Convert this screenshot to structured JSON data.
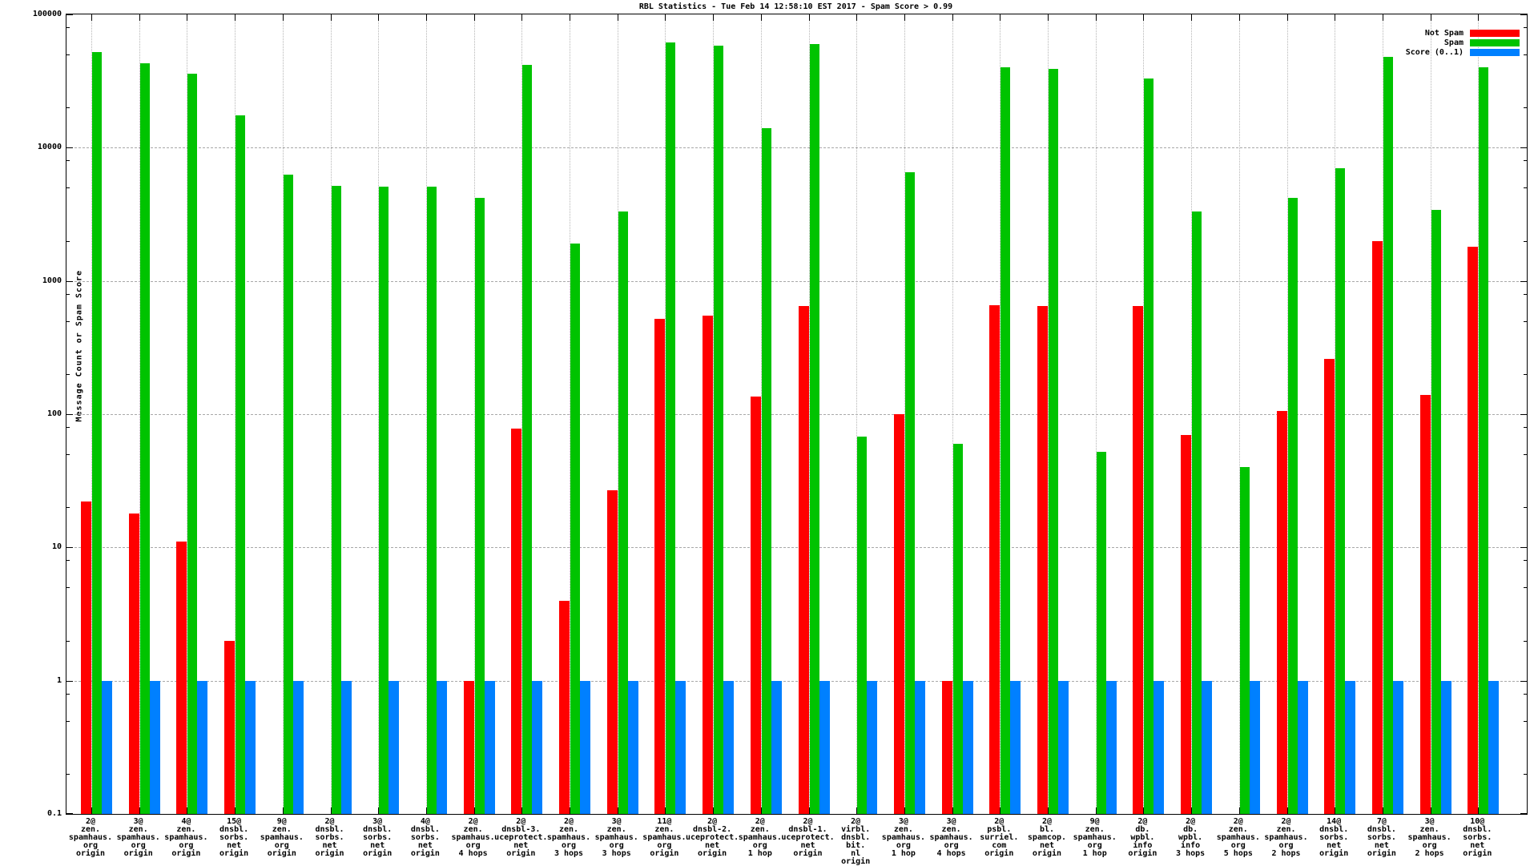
{
  "title": "RBL Statistics - Tue Feb 14 12:58:10 EST 2017 - Spam Score > 0.99",
  "y_axis": {
    "label": "Message Count or Spam Score",
    "scale": "log",
    "ticks": [
      "100000",
      "10000",
      "1000",
      "100",
      "10",
      "1",
      "0.1"
    ],
    "tick_values": [
      100000,
      10000,
      1000,
      100,
      10,
      1,
      0.1
    ]
  },
  "legend": [
    {
      "label": "Not Spam",
      "color": "#ff0000"
    },
    {
      "label": "Spam",
      "color": "#00c300"
    },
    {
      "label": "Score (0..1)",
      "color": "#0080ff"
    }
  ],
  "chart_data": {
    "type": "bar",
    "title": "RBL Statistics - Tue Feb 14 12:58:10 EST 2017 - Spam Score > 0.99",
    "xlabel": "",
    "ylabel": "Message Count or Spam Score",
    "y_scale": "log",
    "ylim": [
      0.1,
      100000
    ],
    "grid": true,
    "legend_position": "top-right",
    "categories": [
      [
        "2@",
        "zen.",
        "spamhaus.",
        "org",
        "origin"
      ],
      [
        "3@",
        "zen.",
        "spamhaus.",
        "org",
        "origin"
      ],
      [
        "4@",
        "zen.",
        "spamhaus.",
        "org",
        "origin"
      ],
      [
        "15@",
        "dnsbl.",
        "sorbs.",
        "net",
        "origin"
      ],
      [
        "9@",
        "zen.",
        "spamhaus.",
        "org",
        "origin"
      ],
      [
        "2@",
        "dnsbl.",
        "sorbs.",
        "net",
        "origin"
      ],
      [
        "3@",
        "dnsbl.",
        "sorbs.",
        "net",
        "origin"
      ],
      [
        "4@",
        "dnsbl.",
        "sorbs.",
        "net",
        "origin"
      ],
      [
        "2@",
        "zen.",
        "spamhaus.",
        "org",
        "4 hops"
      ],
      [
        "2@",
        "dnsbl-3.",
        "uceprotect.",
        "net",
        "origin"
      ],
      [
        "2@",
        "zen.",
        "spamhaus.",
        "org",
        "3 hops"
      ],
      [
        "3@",
        "zen.",
        "spamhaus.",
        "org",
        "3 hops"
      ],
      [
        "11@",
        "zen.",
        "spamhaus.",
        "org",
        "origin"
      ],
      [
        "2@",
        "dnsbl-2.",
        "uceprotect.",
        "net",
        "origin"
      ],
      [
        "2@",
        "zen.",
        "spamhaus.",
        "org",
        "1 hop"
      ],
      [
        "2@",
        "dnsbl-1.",
        "uceprotect.",
        "net",
        "origin"
      ],
      [
        "2@",
        "virbl.",
        "dnsbl.",
        "bit.",
        "nl",
        "origin"
      ],
      [
        "3@",
        "zen.",
        "spamhaus.",
        "org",
        "1 hop"
      ],
      [
        "3@",
        "zen.",
        "spamhaus.",
        "org",
        "4 hops"
      ],
      [
        "2@",
        "psbl.",
        "surriel.",
        "com",
        "origin"
      ],
      [
        "2@",
        "bl.",
        "spamcop.",
        "net",
        "origin"
      ],
      [
        "9@",
        "zen.",
        "spamhaus.",
        "org",
        "1 hop"
      ],
      [
        "2@",
        "db.",
        "wpbl.",
        "info",
        "origin"
      ],
      [
        "2@",
        "db.",
        "wpbl.",
        "info",
        "3 hops"
      ],
      [
        "2@",
        "zen.",
        "spamhaus.",
        "org",
        "5 hops"
      ],
      [
        "2@",
        "zen.",
        "spamhaus.",
        "org",
        "2 hops"
      ],
      [
        "14@",
        "dnsbl.",
        "sorbs.",
        "net",
        "origin"
      ],
      [
        "7@",
        "dnsbl.",
        "sorbs.",
        "net",
        "origin"
      ],
      [
        "3@",
        "zen.",
        "spamhaus.",
        "org",
        "2 hops"
      ],
      [
        "10@",
        "dnsbl.",
        "sorbs.",
        "net",
        "origin"
      ]
    ],
    "series": [
      {
        "name": "Not Spam",
        "color": "#ff0000",
        "values": [
          22,
          18,
          11,
          2,
          0,
          0,
          0,
          0,
          1,
          78,
          4,
          27,
          520,
          550,
          135,
          650,
          0,
          100,
          1,
          660,
          650,
          0,
          650,
          70,
          0,
          105,
          260,
          2000,
          140,
          1800
        ]
      },
      {
        "name": "Spam",
        "color": "#00c300",
        "values": [
          52000,
          43000,
          36000,
          17500,
          6300,
          5200,
          5100,
          5100,
          4200,
          42000,
          1900,
          3300,
          62000,
          58000,
          14000,
          60000,
          68,
          6500,
          60,
          40000,
          39000,
          52,
          33000,
          3300,
          40,
          4200,
          7000,
          48000,
          3400,
          40000
        ]
      },
      {
        "name": "Score (0..1)",
        "color": "#0080ff",
        "values": [
          1,
          1,
          1,
          1,
          1,
          1,
          1,
          1,
          1,
          1,
          1,
          1,
          1,
          1,
          1,
          1,
          1,
          1,
          1,
          1,
          1,
          1,
          1,
          1,
          1,
          1,
          1,
          1,
          1,
          1
        ]
      }
    ]
  }
}
